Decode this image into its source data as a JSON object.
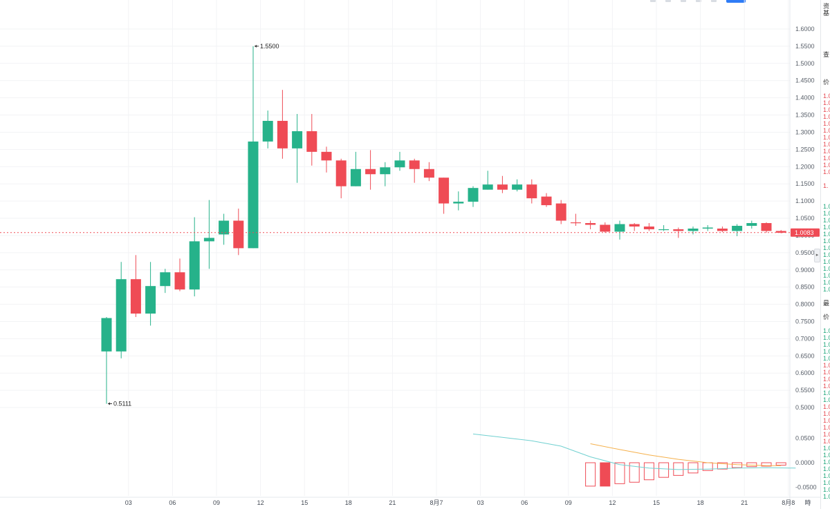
{
  "chart_data": {
    "type": "candlestick",
    "last_price_label": "1.0083",
    "last_price": 1.0083,
    "y_axis_ticks": [
      "1.6000",
      "1.5500",
      "1.5000",
      "1.4500",
      "1.4000",
      "1.3500",
      "1.3000",
      "1.2500",
      "1.2000",
      "1.1500",
      "1.1000",
      "1.0500",
      "1.0000",
      "0.9500",
      "0.9000",
      "0.8500",
      "0.8000",
      "0.7500",
      "0.7000",
      "0.6500",
      "0.6000",
      "0.5500",
      "0.5000"
    ],
    "ylim": [
      0.46,
      1.62
    ],
    "x_axis_ticks": [
      {
        "label": "03",
        "index": 1.5
      },
      {
        "label": "06",
        "index": 4.5
      },
      {
        "label": "09",
        "index": 7.5
      },
      {
        "label": "12",
        "index": 10.5
      },
      {
        "label": "15",
        "index": 13.5
      },
      {
        "label": "18",
        "index": 16.5
      },
      {
        "label": "21",
        "index": 19.5
      },
      {
        "label": "8月7",
        "index": 22.5
      },
      {
        "label": "03",
        "index": 25.5
      },
      {
        "label": "06",
        "index": 28.5
      },
      {
        "label": "09",
        "index": 31.5
      },
      {
        "label": "12",
        "index": 34.5
      },
      {
        "label": "15",
        "index": 37.5
      },
      {
        "label": "18",
        "index": 40.5
      },
      {
        "label": "21",
        "index": 43.5
      },
      {
        "label": "8月8",
        "index": 46.5
      }
    ],
    "x_axis_suffix": "時",
    "annotations": [
      {
        "label": "1.5500",
        "index": 10,
        "value": 1.55
      },
      {
        "label": "0.5111",
        "index": 0,
        "value": 0.5111
      }
    ],
    "candles": [
      {
        "o": 0.663,
        "h": 0.763,
        "l": 0.511,
        "c": 0.76
      },
      {
        "o": 0.663,
        "h": 0.923,
        "l": 0.643,
        "c": 0.873
      },
      {
        "o": 0.873,
        "h": 0.943,
        "l": 0.763,
        "c": 0.773
      },
      {
        "o": 0.773,
        "h": 0.923,
        "l": 0.738,
        "c": 0.853
      },
      {
        "o": 0.853,
        "h": 0.903,
        "l": 0.833,
        "c": 0.893
      },
      {
        "o": 0.893,
        "h": 0.933,
        "l": 0.838,
        "c": 0.843
      },
      {
        "o": 0.843,
        "h": 1.053,
        "l": 0.823,
        "c": 0.983
      },
      {
        "o": 0.983,
        "h": 1.103,
        "l": 0.903,
        "c": 0.993
      },
      {
        "o": 1.003,
        "h": 1.063,
        "l": 0.973,
        "c": 1.043
      },
      {
        "o": 1.043,
        "h": 1.078,
        "l": 0.943,
        "c": 0.963
      },
      {
        "o": 0.963,
        "h": 1.55,
        "l": 0.963,
        "c": 1.273
      },
      {
        "o": 1.273,
        "h": 1.363,
        "l": 1.253,
        "c": 1.333
      },
      {
        "o": 1.333,
        "h": 1.423,
        "l": 1.223,
        "c": 1.253
      },
      {
        "o": 1.253,
        "h": 1.353,
        "l": 1.153,
        "c": 1.303
      },
      {
        "o": 1.303,
        "h": 1.353,
        "l": 1.203,
        "c": 1.243
      },
      {
        "o": 1.243,
        "h": 1.258,
        "l": 1.183,
        "c": 1.218
      },
      {
        "o": 1.218,
        "h": 1.223,
        "l": 1.108,
        "c": 1.143
      },
      {
        "o": 1.143,
        "h": 1.243,
        "l": 1.143,
        "c": 1.193
      },
      {
        "o": 1.193,
        "h": 1.248,
        "l": 1.133,
        "c": 1.178
      },
      {
        "o": 1.178,
        "h": 1.213,
        "l": 1.143,
        "c": 1.198
      },
      {
        "o": 1.198,
        "h": 1.243,
        "l": 1.188,
        "c": 1.218
      },
      {
        "o": 1.218,
        "h": 1.223,
        "l": 1.153,
        "c": 1.193
      },
      {
        "o": 1.193,
        "h": 1.213,
        "l": 1.158,
        "c": 1.168
      },
      {
        "o": 1.168,
        "h": 1.168,
        "l": 1.063,
        "c": 1.093
      },
      {
        "o": 1.093,
        "h": 1.128,
        "l": 1.073,
        "c": 1.098
      },
      {
        "o": 1.098,
        "h": 1.143,
        "l": 1.083,
        "c": 1.138
      },
      {
        "o": 1.133,
        "h": 1.188,
        "l": 1.133,
        "c": 1.148
      },
      {
        "o": 1.148,
        "h": 1.173,
        "l": 1.123,
        "c": 1.133
      },
      {
        "o": 1.133,
        "h": 1.163,
        "l": 1.128,
        "c": 1.148
      },
      {
        "o": 1.148,
        "h": 1.163,
        "l": 1.093,
        "c": 1.108
      },
      {
        "o": 1.113,
        "h": 1.123,
        "l": 1.083,
        "c": 1.088
      },
      {
        "o": 1.093,
        "h": 1.103,
        "l": 1.033,
        "c": 1.043
      },
      {
        "o": 1.038,
        "h": 1.063,
        "l": 1.028,
        "c": 1.036
      },
      {
        "o": 1.036,
        "h": 1.043,
        "l": 1.018,
        "c": 1.031
      },
      {
        "o": 1.031,
        "h": 1.038,
        "l": 1.008,
        "c": 1.011
      },
      {
        "o": 1.011,
        "h": 1.043,
        "l": 0.988,
        "c": 1.033
      },
      {
        "o": 1.033,
        "h": 1.036,
        "l": 1.013,
        "c": 1.026
      },
      {
        "o": 1.026,
        "h": 1.036,
        "l": 1.013,
        "c": 1.018
      },
      {
        "o": 1.018,
        "h": 1.03,
        "l": 1.013,
        "c": 1.018
      },
      {
        "o": 1.018,
        "h": 1.023,
        "l": 0.993,
        "c": 1.013
      },
      {
        "o": 1.013,
        "h": 1.026,
        "l": 1.003,
        "c": 1.02
      },
      {
        "o": 1.02,
        "h": 1.03,
        "l": 1.013,
        "c": 1.023
      },
      {
        "o": 1.02,
        "h": 1.026,
        "l": 1.01,
        "c": 1.013
      },
      {
        "o": 1.013,
        "h": 1.033,
        "l": 0.998,
        "c": 1.028
      },
      {
        "o": 1.028,
        "h": 1.043,
        "l": 1.02,
        "c": 1.036
      },
      {
        "o": 1.036,
        "h": 1.038,
        "l": 1.008,
        "c": 1.013
      },
      {
        "o": 1.013,
        "h": 1.016,
        "l": 1.006,
        "c": 1.008
      }
    ],
    "indicator": {
      "y_axis_ticks": [
        "0.0500",
        "0.0000",
        "-0.0500"
      ],
      "ylim": [
        -0.068,
        0.068
      ],
      "histogram": [
        {
          "index": 33,
          "value": -0.048,
          "color": "red"
        },
        {
          "index": 34,
          "value": -0.048,
          "color": "red",
          "filled": true
        },
        {
          "index": 35,
          "value": -0.043,
          "color": "red"
        },
        {
          "index": 36,
          "value": -0.04,
          "color": "red"
        },
        {
          "index": 37,
          "value": -0.035,
          "color": "red"
        },
        {
          "index": 38,
          "value": -0.03,
          "color": "red"
        },
        {
          "index": 39,
          "value": -0.026,
          "color": "red"
        },
        {
          "index": 40,
          "value": -0.021,
          "color": "red"
        },
        {
          "index": 41,
          "value": -0.016,
          "color": "red"
        },
        {
          "index": 42,
          "value": -0.013,
          "color": "red"
        },
        {
          "index": 43,
          "value": -0.01,
          "color": "red"
        },
        {
          "index": 44,
          "value": -0.008,
          "color": "red"
        },
        {
          "index": 45,
          "value": -0.007,
          "color": "red"
        },
        {
          "index": 46,
          "value": -0.005,
          "color": "red"
        }
      ],
      "fast_line": [
        {
          "index": 25,
          "value": 0.059
        },
        {
          "index": 27,
          "value": 0.052
        },
        {
          "index": 29,
          "value": 0.045
        },
        {
          "index": 31,
          "value": 0.034
        },
        {
          "index": 33,
          "value": 0.012
        },
        {
          "index": 35,
          "value": -0.004
        },
        {
          "index": 37,
          "value": -0.011
        },
        {
          "index": 39,
          "value": -0.014
        },
        {
          "index": 41,
          "value": -0.013
        },
        {
          "index": 43,
          "value": -0.011
        },
        {
          "index": 45,
          "value": -0.01
        },
        {
          "index": 47,
          "value": -0.011
        }
      ],
      "slow_line": [
        {
          "index": 33,
          "value": 0.039
        },
        {
          "index": 35,
          "value": 0.027
        },
        {
          "index": 37,
          "value": 0.016
        },
        {
          "index": 39,
          "value": 0.007
        },
        {
          "index": 41,
          "value": 0.0
        },
        {
          "index": 43,
          "value": -0.004
        },
        {
          "index": 45,
          "value": -0.006
        },
        {
          "index": 46,
          "value": -0.006
        }
      ]
    },
    "colors": {
      "up": "#26b28a",
      "down": "#ef4b55",
      "fast_line": "#6fd0d0",
      "slow_line": "#f5b04b",
      "last_price": "#ef4b55",
      "grid": "#f2f3f5"
    },
    "grid": true
  },
  "side_panel": {
    "rows": [
      {
        "text": "资",
        "tone": "label",
        "row": 0
      },
      {
        "text": "基",
        "tone": "label",
        "row": 1
      },
      {
        "text": "查",
        "tone": "label",
        "row": 7
      },
      {
        "text": "价",
        "tone": "label",
        "row": 11
      },
      {
        "text": "1.0",
        "tone": "down",
        "row": 13
      },
      {
        "text": "1.0",
        "tone": "down",
        "row": 14
      },
      {
        "text": "1.0",
        "tone": "down",
        "row": 15
      },
      {
        "text": "1.0",
        "tone": "down",
        "row": 16
      },
      {
        "text": "1.0",
        "tone": "down",
        "row": 17
      },
      {
        "text": "1.0",
        "tone": "down",
        "row": 18
      },
      {
        "text": "1.0",
        "tone": "down",
        "row": 19
      },
      {
        "text": "1.0",
        "tone": "down",
        "row": 20
      },
      {
        "text": "1.0",
        "tone": "down",
        "row": 21
      },
      {
        "text": "1.0",
        "tone": "down",
        "row": 22
      },
      {
        "text": "1.0",
        "tone": "down",
        "row": 23
      },
      {
        "text": "1.0",
        "tone": "down",
        "row": 24
      },
      {
        "text": "1.",
        "tone": "down",
        "row": 26
      },
      {
        "text": "1.0",
        "tone": "up",
        "row": 29
      },
      {
        "text": "1.0",
        "tone": "up",
        "row": 30
      },
      {
        "text": "1.0",
        "tone": "up",
        "row": 31
      },
      {
        "text": "1.0",
        "tone": "up",
        "row": 32
      },
      {
        "text": "1.0",
        "tone": "up",
        "row": 33
      },
      {
        "text": "1.0",
        "tone": "up",
        "row": 34
      },
      {
        "text": "1.0",
        "tone": "up",
        "row": 35
      },
      {
        "text": "1.0",
        "tone": "up",
        "row": 36
      },
      {
        "text": "1.0",
        "tone": "up",
        "row": 37
      },
      {
        "text": "1.0",
        "tone": "up",
        "row": 38
      },
      {
        "text": "1.0",
        "tone": "up",
        "row": 39
      },
      {
        "text": "1.0",
        "tone": "up",
        "row": 40
      },
      {
        "text": "1.0",
        "tone": "up",
        "row": 41
      },
      {
        "text": "最",
        "tone": "label",
        "row": 43
      },
      {
        "text": "价",
        "tone": "label",
        "row": 45
      },
      {
        "text": "1.0",
        "tone": "up",
        "row": 47
      },
      {
        "text": "1.0",
        "tone": "up",
        "row": 48
      },
      {
        "text": "1.0",
        "tone": "up",
        "row": 49
      },
      {
        "text": "1.0",
        "tone": "up",
        "row": 50
      },
      {
        "text": "1.0",
        "tone": "up",
        "row": 51
      },
      {
        "text": "1.0",
        "tone": "down",
        "row": 52
      },
      {
        "text": "1.0",
        "tone": "down",
        "row": 53
      },
      {
        "text": "1.0",
        "tone": "down",
        "row": 54
      },
      {
        "text": "1.0",
        "tone": "down",
        "row": 55
      },
      {
        "text": "1.0",
        "tone": "up",
        "row": 56
      },
      {
        "text": "1.0",
        "tone": "up",
        "row": 57
      },
      {
        "text": "1.0",
        "tone": "down",
        "row": 58
      },
      {
        "text": "1.0",
        "tone": "down",
        "row": 59
      },
      {
        "text": "1.0",
        "tone": "down",
        "row": 60
      },
      {
        "text": "1.0",
        "tone": "down",
        "row": 61
      },
      {
        "text": "1.0",
        "tone": "down",
        "row": 62
      },
      {
        "text": "1.0",
        "tone": "down",
        "row": 63
      },
      {
        "text": "1.0",
        "tone": "up",
        "row": 64
      },
      {
        "text": "1.0",
        "tone": "up",
        "row": 65
      },
      {
        "text": "1.0",
        "tone": "up",
        "row": 66
      },
      {
        "text": "1.0",
        "tone": "up",
        "row": 67
      },
      {
        "text": "1.0",
        "tone": "up",
        "row": 68
      },
      {
        "text": "1.0",
        "tone": "up",
        "row": 69
      },
      {
        "text": "1.0",
        "tone": "up",
        "row": 70
      },
      {
        "text": "1.0",
        "tone": "up",
        "row": 71
      }
    ],
    "handle_icon": "chevron-right-icon",
    "handle_glyph": "▸"
  }
}
